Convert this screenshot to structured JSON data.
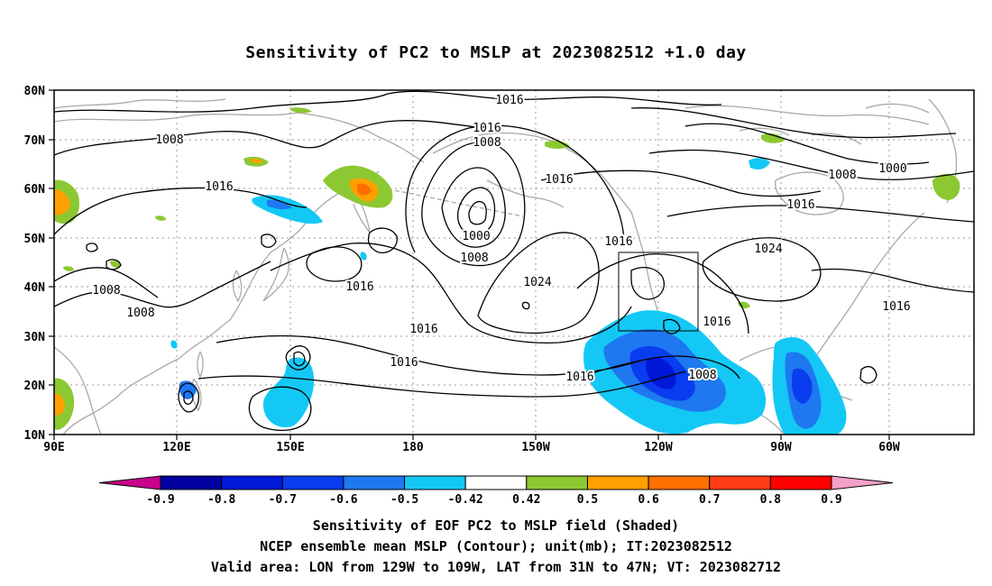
{
  "title": "Sensitivity of PC2 to MSLP at 2023082512 +1.0 day",
  "lat_labels": [
    "80N",
    "70N",
    "60N",
    "50N",
    "40N",
    "30N",
    "20N",
    "10N"
  ],
  "lon_labels": [
    "90E",
    "120E",
    "150E",
    "180",
    "150W",
    "120W",
    "90W",
    "60W"
  ],
  "colorbar": {
    "labels": [
      "-0.9",
      "-0.8",
      "-0.7",
      "-0.6",
      "-0.5",
      "-0.42",
      "0.42",
      "0.5",
      "0.6",
      "0.7",
      "0.8",
      "0.9"
    ],
    "colors": [
      "#c8008c",
      "#0000a0",
      "#0018d8",
      "#0a3cf0",
      "#1e78f0",
      "#14c8f5",
      "#ffffff",
      "#8cc832",
      "#ffa000",
      "#ff6e00",
      "#ff3c14",
      "#ff0000",
      "#f5a0c8"
    ]
  },
  "contour_labels": [
    "1016",
    "1016",
    "1008",
    "1008",
    "1016",
    "1000",
    "1008",
    "1016",
    "1016",
    "1008",
    "1000",
    "1016",
    "1016",
    "1024",
    "1024",
    "1008",
    "1008",
    "1016",
    "1016",
    "1016",
    "1016",
    "1016",
    "1008",
    "1016"
  ],
  "box": {
    "lon_range": [
      "129W",
      "109W"
    ],
    "lat_range": [
      "31N",
      "47N"
    ]
  },
  "captions": [
    "Sensitivity of EOF PC2 to MSLP field (Shaded)",
    "NCEP ensemble mean MSLP (Contour); unit(mb); IT:2023082512",
    "Valid area: LON from 129W to 109W, LAT from 31N to 47N; VT: 2023082712"
  ]
}
